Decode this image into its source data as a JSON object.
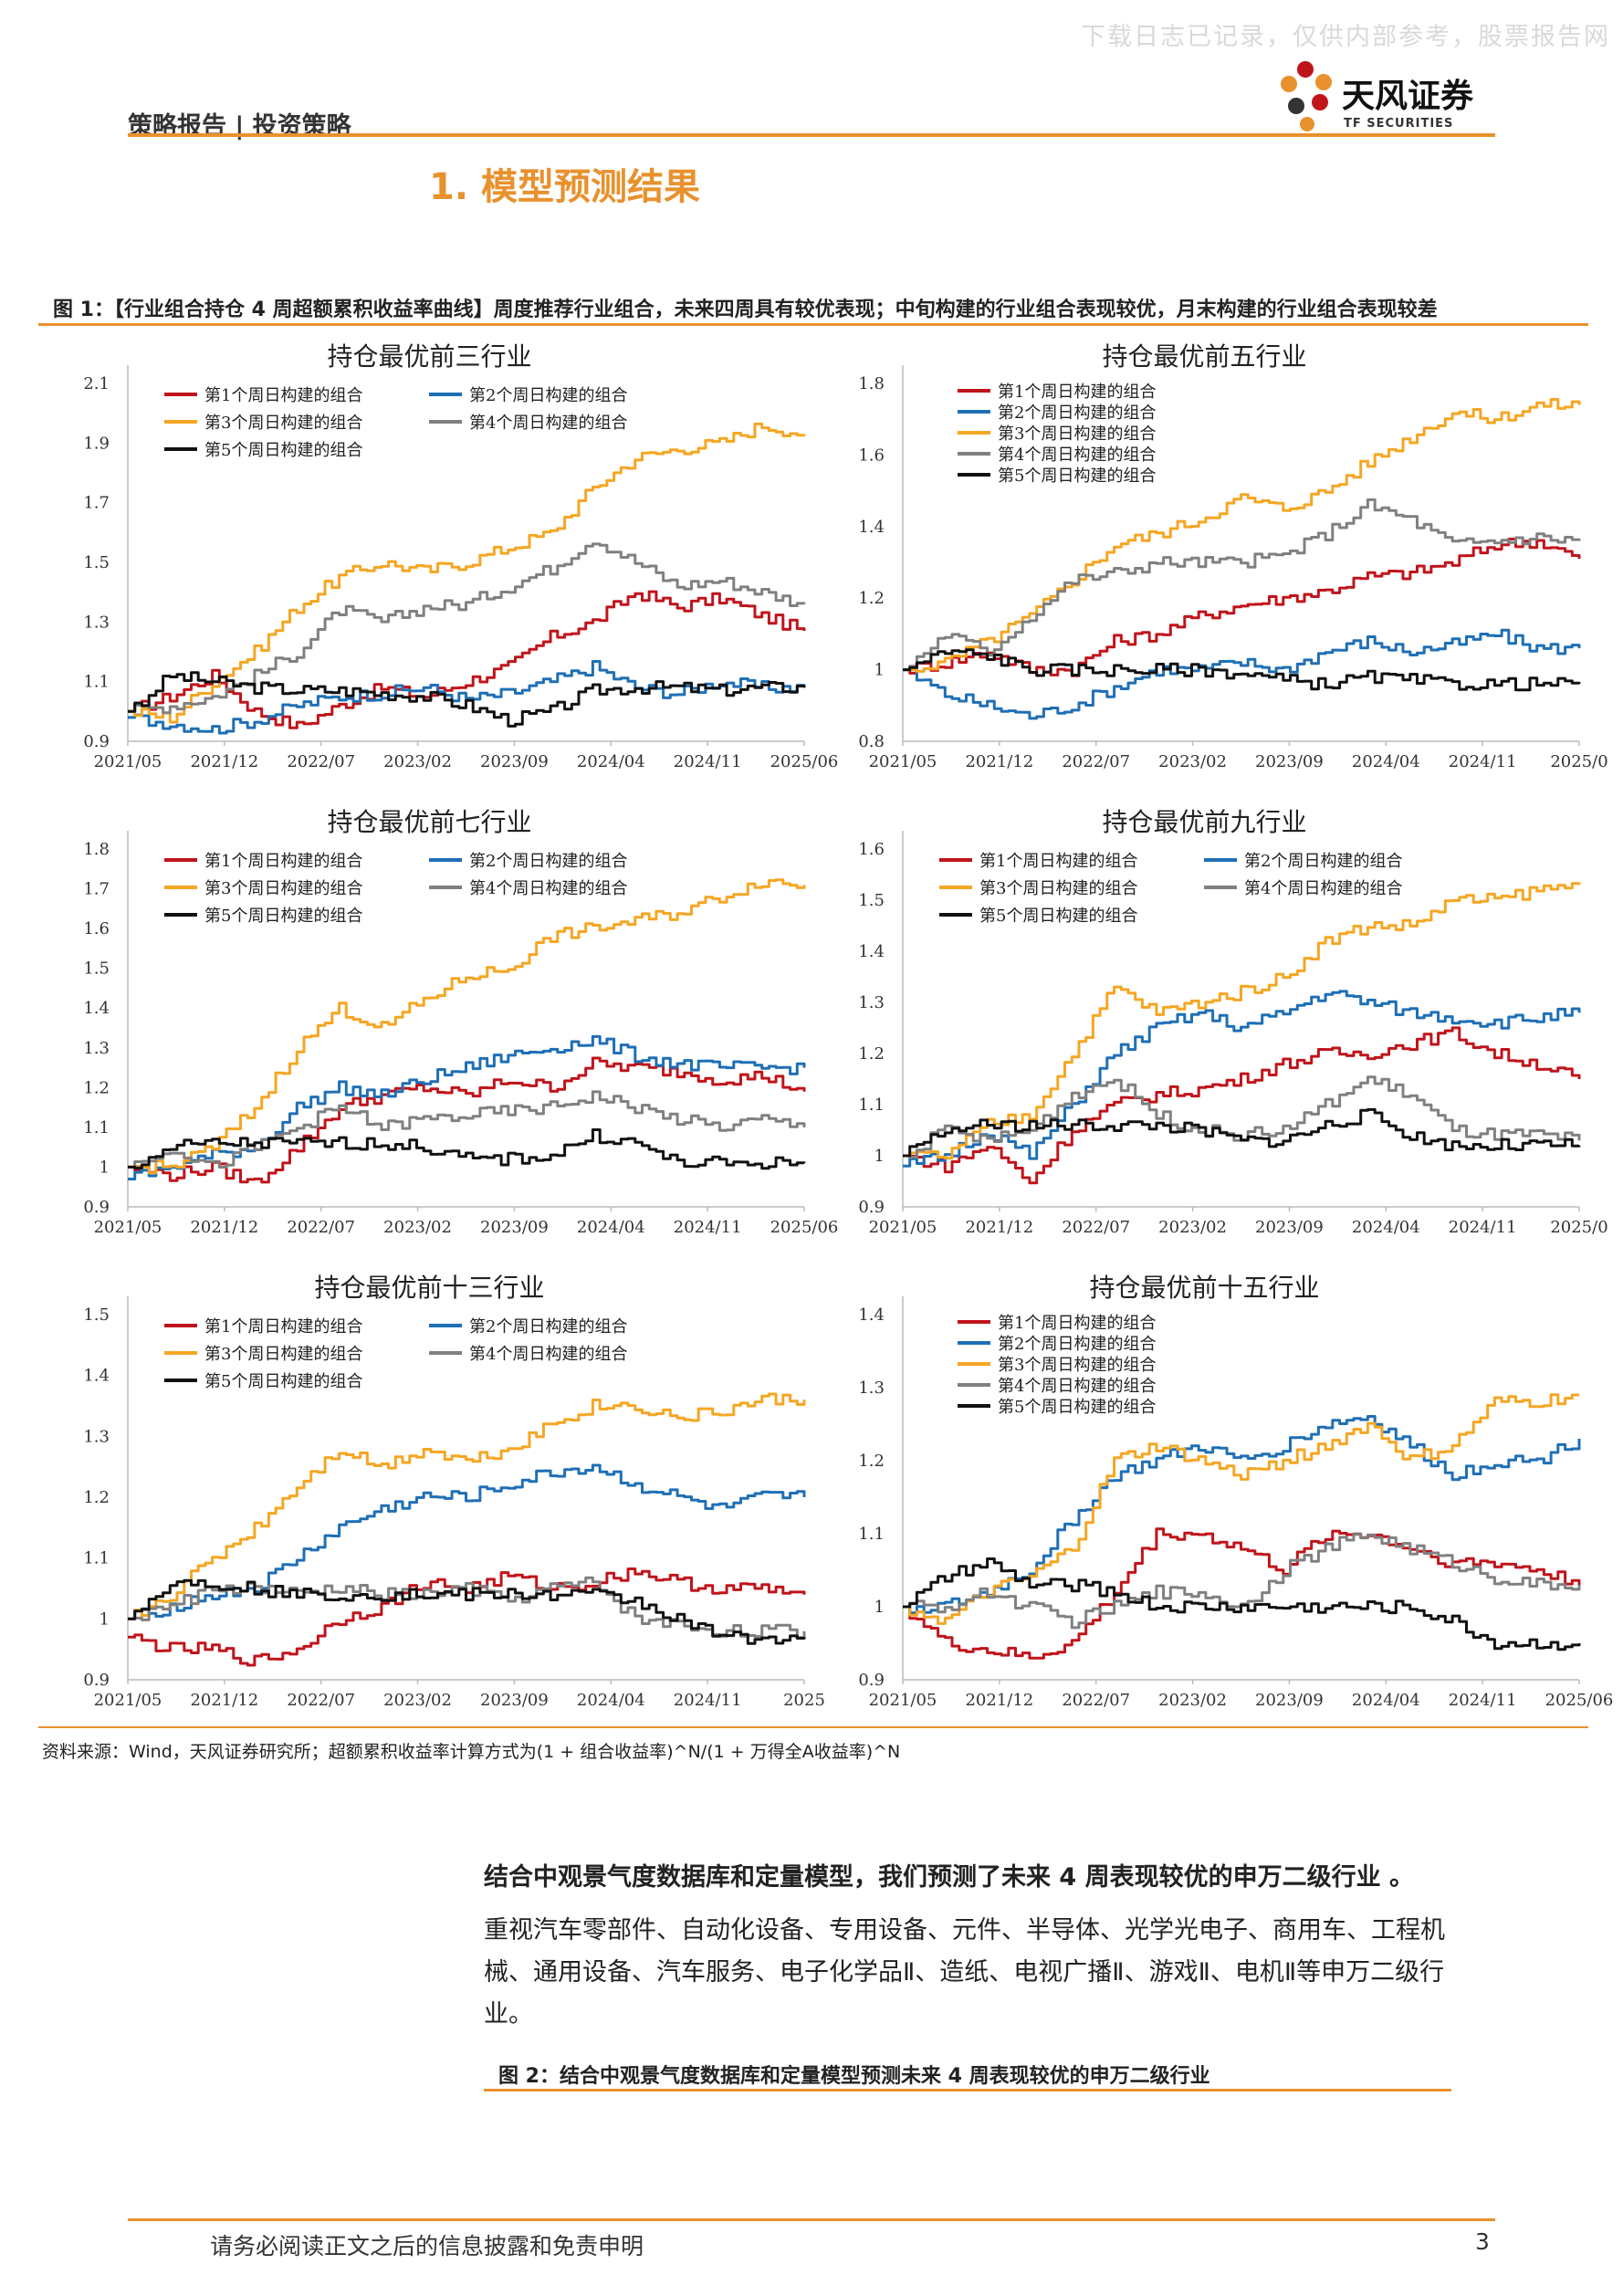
{
  "watermark": "下载日志已记录，仅供内部参考，股票报告网",
  "header": {
    "section": "策略报告 | 投资策略",
    "logo_cn": "天风证券",
    "logo_en": "TF SECURITIES"
  },
  "heading": "1. 模型预测结果",
  "figure1": {
    "title": "图 1：【行业组合持仓 4 周超额累积收益率曲线】周度推荐行业组合，未来四周具有较优表现；中旬构建的行业组合表现较优，月末构建的行业组合表现较差",
    "source": "资料来源：Wind，天风证券研究所；超额累积收益率计算方式为(1 + 组合收益率)^N/(1 + 万得全A收益率)^N"
  },
  "colors": {
    "accent": "#e8912d",
    "s1": "#c0141b",
    "s2": "#1f6fb5",
    "s3": "#f5a623",
    "s4": "#808080",
    "s5": "#111111"
  },
  "chart_data": [
    {
      "type": "line",
      "title": "持仓最优前三行业",
      "x_ticks": [
        "2021/05",
        "2021/12",
        "2022/07",
        "2023/02",
        "2023/09",
        "2024/04",
        "2024/11",
        "2025/06"
      ],
      "yticks": [
        0.9,
        1.1,
        1.3,
        1.5,
        1.7,
        1.9,
        2.1
      ],
      "ylim": [
        0.9,
        2.1
      ],
      "legend": "top",
      "series": [
        {
          "name": "第1个周日构建的组合",
          "values": [
            1.0,
            1.05,
            1.12,
            1.0,
            0.95,
            1.02,
            1.08,
            1.05,
            1.1,
            1.15,
            1.25,
            1.3,
            1.4,
            1.35,
            1.38,
            1.32,
            1.27
          ]
        },
        {
          "name": "第2个周日构建的组合",
          "values": [
            0.98,
            0.96,
            0.94,
            0.97,
            1.02,
            1.05,
            1.06,
            1.08,
            1.04,
            1.06,
            1.1,
            1.15,
            1.08,
            1.06,
            1.1,
            1.08,
            1.08
          ]
        },
        {
          "name": "第3个周日构建的组合",
          "values": [
            1.0,
            0.98,
            1.1,
            1.2,
            1.35,
            1.45,
            1.5,
            1.47,
            1.5,
            1.55,
            1.6,
            1.75,
            1.85,
            1.88,
            1.9,
            1.96,
            1.93
          ]
        },
        {
          "name": "第4个周日构建的组合",
          "values": [
            1.0,
            1.02,
            1.05,
            1.12,
            1.2,
            1.34,
            1.3,
            1.35,
            1.36,
            1.42,
            1.48,
            1.58,
            1.5,
            1.42,
            1.44,
            1.4,
            1.36
          ]
        },
        {
          "name": "第5个周日构建的组合",
          "values": [
            1.0,
            1.12,
            1.1,
            1.08,
            1.07,
            1.07,
            1.06,
            1.05,
            1.02,
            0.97,
            1.0,
            1.07,
            1.08,
            1.08,
            1.07,
            1.08,
            1.08
          ]
        }
      ]
    },
    {
      "type": "line",
      "title": "持仓最优前五行业",
      "x_ticks": [
        "2021/05",
        "2021/12",
        "2022/07",
        "2023/02",
        "2023/09",
        "2024/04",
        "2024/11",
        "2025/0"
      ],
      "yticks": [
        0.8,
        1.0,
        1.2,
        1.4,
        1.6,
        1.8
      ],
      "ylim": [
        0.8,
        1.8
      ],
      "legend": "top-left",
      "series": [
        {
          "name": "第1个周日构建的组合",
          "values": [
            1.0,
            1.02,
            1.05,
            1.0,
            1.0,
            1.08,
            1.1,
            1.15,
            1.18,
            1.2,
            1.22,
            1.26,
            1.27,
            1.3,
            1.35,
            1.36,
            1.31
          ]
        },
        {
          "name": "第2个周日构建的组合",
          "values": [
            1.0,
            0.93,
            0.9,
            0.87,
            0.9,
            0.95,
            1.0,
            1.0,
            1.02,
            1.0,
            1.05,
            1.08,
            1.05,
            1.07,
            1.1,
            1.06,
            1.06
          ]
        },
        {
          "name": "第3个周日构建的组合",
          "values": [
            1.0,
            1.02,
            1.08,
            1.15,
            1.25,
            1.35,
            1.38,
            1.42,
            1.48,
            1.45,
            1.5,
            1.58,
            1.65,
            1.72,
            1.7,
            1.74,
            1.74
          ]
        },
        {
          "name": "第4个周日构建的组合",
          "values": [
            1.0,
            1.1,
            1.05,
            1.15,
            1.25,
            1.27,
            1.3,
            1.3,
            1.3,
            1.32,
            1.38,
            1.46,
            1.42,
            1.35,
            1.36,
            1.37,
            1.36
          ]
        },
        {
          "name": "第5个周日构建的组合",
          "values": [
            1.0,
            1.05,
            1.04,
            1.0,
            1.0,
            1.0,
            1.0,
            1.0,
            0.99,
            0.97,
            0.96,
            0.98,
            0.97,
            0.96,
            0.96,
            0.96,
            0.96
          ]
        }
      ]
    },
    {
      "type": "line",
      "title": "持仓最优前七行业",
      "x_ticks": [
        "2021/05",
        "2021/12",
        "2022/07",
        "2023/02",
        "2023/09",
        "2024/04",
        "2024/11",
        "2025/06"
      ],
      "yticks": [
        0.9,
        1.0,
        1.1,
        1.2,
        1.3,
        1.4,
        1.5,
        1.6,
        1.7,
        1.8
      ],
      "ylim": [
        0.9,
        1.8
      ],
      "legend": "top",
      "series": [
        {
          "name": "第1个周日构建的组合",
          "values": [
            1.0,
            0.98,
            1.0,
            0.96,
            1.05,
            1.15,
            1.18,
            1.2,
            1.18,
            1.22,
            1.2,
            1.26,
            1.25,
            1.24,
            1.22,
            1.23,
            1.19
          ]
        },
        {
          "name": "第2个周日构建的组合",
          "values": [
            0.97,
            1.0,
            1.03,
            1.05,
            1.15,
            1.2,
            1.18,
            1.22,
            1.25,
            1.28,
            1.3,
            1.32,
            1.28,
            1.26,
            1.25,
            1.25,
            1.25
          ]
        },
        {
          "name": "第3个周日构建的组合",
          "values": [
            1.0,
            1.0,
            1.05,
            1.15,
            1.3,
            1.4,
            1.35,
            1.42,
            1.48,
            1.5,
            1.58,
            1.6,
            1.62,
            1.64,
            1.68,
            1.72,
            1.71
          ]
        },
        {
          "name": "第4个周日构建的组合",
          "values": [
            1.0,
            1.05,
            1.0,
            1.05,
            1.1,
            1.15,
            1.1,
            1.12,
            1.13,
            1.14,
            1.15,
            1.18,
            1.15,
            1.12,
            1.1,
            1.12,
            1.1
          ]
        },
        {
          "name": "第5个周日构建的组合",
          "values": [
            1.0,
            1.05,
            1.06,
            1.06,
            1.06,
            1.06,
            1.06,
            1.05,
            1.02,
            1.02,
            1.03,
            1.08,
            1.06,
            1.01,
            1.01,
            1.01,
            1.01
          ]
        }
      ]
    },
    {
      "type": "line",
      "title": "持仓最优前九行业",
      "x_ticks": [
        "2021/05",
        "2021/12",
        "2022/07",
        "2023/02",
        "2023/09",
        "2024/04",
        "2024/11",
        "2025/0"
      ],
      "yticks": [
        0.9,
        1.0,
        1.1,
        1.2,
        1.3,
        1.4,
        1.5,
        1.6
      ],
      "ylim": [
        0.9,
        1.6
      ],
      "legend": "top",
      "series": [
        {
          "name": "第1个周日构建的组合",
          "values": [
            1.0,
            0.98,
            1.02,
            0.95,
            1.05,
            1.1,
            1.12,
            1.13,
            1.15,
            1.18,
            1.2,
            1.2,
            1.22,
            1.24,
            1.2,
            1.18,
            1.15
          ]
        },
        {
          "name": "第2个周日构建的组合",
          "values": [
            0.98,
            1.0,
            1.05,
            1.0,
            1.1,
            1.2,
            1.25,
            1.28,
            1.25,
            1.28,
            1.32,
            1.3,
            1.28,
            1.27,
            1.26,
            1.27,
            1.28
          ]
        },
        {
          "name": "第3个周日构建的组合",
          "values": [
            1.0,
            1.0,
            1.06,
            1.08,
            1.2,
            1.33,
            1.28,
            1.3,
            1.32,
            1.35,
            1.42,
            1.45,
            1.45,
            1.5,
            1.5,
            1.52,
            1.53
          ]
        },
        {
          "name": "第4个周日构建的组合",
          "values": [
            1.0,
            1.05,
            1.03,
            1.05,
            1.12,
            1.15,
            1.08,
            1.05,
            1.04,
            1.05,
            1.1,
            1.15,
            1.12,
            1.05,
            1.04,
            1.04,
            1.03
          ]
        },
        {
          "name": "第5个周日构建的组合",
          "values": [
            1.0,
            1.05,
            1.06,
            1.06,
            1.06,
            1.06,
            1.06,
            1.05,
            1.03,
            1.03,
            1.06,
            1.08,
            1.04,
            1.02,
            1.02,
            1.02,
            1.02
          ]
        }
      ]
    },
    {
      "type": "line",
      "title": "持仓最优前十三行业",
      "x_ticks": [
        "2021/05",
        "2021/12",
        "2022/07",
        "2023/02",
        "2023/09",
        "2024/04",
        "2024/11",
        "2025"
      ],
      "yticks": [
        0.9,
        1.0,
        1.1,
        1.2,
        1.3,
        1.4,
        1.5
      ],
      "ylim": [
        0.9,
        1.5
      ],
      "legend": "top",
      "series": [
        {
          "name": "第1个周日构建的组合",
          "values": [
            0.97,
            0.95,
            0.95,
            0.93,
            0.95,
            1.0,
            1.02,
            1.06,
            1.05,
            1.07,
            1.05,
            1.06,
            1.08,
            1.06,
            1.05,
            1.05,
            1.04
          ]
        },
        {
          "name": "第2个周日构建的组合",
          "values": [
            1.0,
            1.02,
            1.04,
            1.05,
            1.1,
            1.15,
            1.18,
            1.2,
            1.2,
            1.22,
            1.24,
            1.25,
            1.22,
            1.2,
            1.18,
            1.2,
            1.2
          ]
        },
        {
          "name": "第3个周日构建的组合",
          "values": [
            1.0,
            1.04,
            1.1,
            1.15,
            1.22,
            1.28,
            1.25,
            1.28,
            1.26,
            1.28,
            1.32,
            1.35,
            1.35,
            1.33,
            1.34,
            1.36,
            1.36
          ]
        },
        {
          "name": "第4个周日构建的组合",
          "values": [
            1.0,
            1.02,
            1.05,
            1.05,
            1.04,
            1.05,
            1.04,
            1.04,
            1.05,
            1.03,
            1.05,
            1.06,
            1.0,
            0.99,
            0.98,
            0.98,
            0.98
          ]
        },
        {
          "name": "第5个周日构建的组合",
          "values": [
            1.0,
            1.06,
            1.06,
            1.05,
            1.04,
            1.04,
            1.04,
            1.04,
            1.04,
            1.04,
            1.04,
            1.04,
            1.03,
            1.0,
            0.97,
            0.97,
            0.97
          ]
        }
      ]
    },
    {
      "type": "line",
      "title": "持仓最优前十五行业",
      "x_ticks": [
        "2021/05",
        "2021/12",
        "2022/07",
        "2023/02",
        "2023/09",
        "2024/04",
        "2024/11",
        "2025/06"
      ],
      "yticks": [
        0.9,
        1.0,
        1.1,
        1.2,
        1.3,
        1.4
      ],
      "ylim": [
        0.9,
        1.4
      ],
      "legend": "top-left",
      "series": [
        {
          "name": "第1个周日构建的组合",
          "values": [
            1.0,
            0.95,
            0.94,
            0.93,
            0.95,
            1.02,
            1.1,
            1.1,
            1.08,
            1.05,
            1.1,
            1.1,
            1.08,
            1.06,
            1.06,
            1.05,
            1.03
          ]
        },
        {
          "name": "第2个周日构建的组合",
          "values": [
            1.0,
            1.0,
            1.02,
            1.05,
            1.12,
            1.18,
            1.2,
            1.22,
            1.2,
            1.22,
            1.25,
            1.26,
            1.22,
            1.18,
            1.2,
            1.2,
            1.23
          ]
        },
        {
          "name": "第3个周日构建的组合",
          "values": [
            1.0,
            0.98,
            1.02,
            1.04,
            1.08,
            1.2,
            1.22,
            1.2,
            1.18,
            1.2,
            1.22,
            1.25,
            1.2,
            1.22,
            1.28,
            1.28,
            1.29
          ]
        },
        {
          "name": "第4个周日构建的组合",
          "values": [
            1.0,
            1.0,
            1.02,
            1.0,
            0.98,
            1.0,
            1.02,
            1.02,
            1.0,
            1.05,
            1.08,
            1.1,
            1.08,
            1.06,
            1.04,
            1.03,
            1.03
          ]
        },
        {
          "name": "第5个周日构建的组合",
          "values": [
            1.0,
            1.04,
            1.06,
            1.03,
            1.03,
            1.02,
            1.0,
            1.0,
            1.0,
            1.0,
            1.0,
            1.0,
            1.0,
            0.98,
            0.95,
            0.95,
            0.95
          ]
        }
      ]
    }
  ],
  "para1": "结合中观景气度数据库和定量模型，我们预测了未来 4 周表现较优的申万二级行业 。",
  "para2": "重视汽车零部件、自动化设备、专用设备、元件、半导体、光学光电子、商用车、工程机械、通用设备、汽车服务、电子化学品Ⅱ、造纸、电视广播Ⅱ、游戏Ⅱ、电机Ⅱ等申万二级行业。",
  "figure2": {
    "title": "图 2：结合中观景气度数据库和定量模型预测未来 4 周表现较优的申万二级行业"
  },
  "footer": {
    "text": "请务必阅读正文之后的信息披露和免责申明",
    "page": "3"
  }
}
